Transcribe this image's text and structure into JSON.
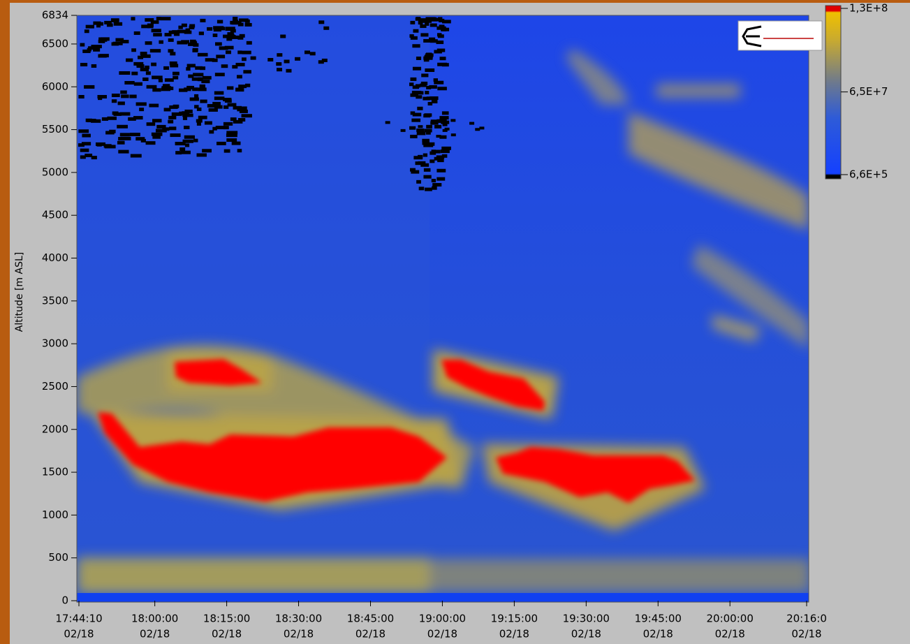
{
  "chart_data": {
    "type": "heatmap",
    "y_label": "Altitude [m ASL]",
    "ylim": [
      0,
      6834
    ],
    "yticks": [
      0,
      500,
      1000,
      1500,
      2000,
      2500,
      3000,
      3500,
      4000,
      4500,
      5000,
      5500,
      6000,
      6500,
      6834
    ],
    "xticks": [
      {
        "time": "17:44:10",
        "date": "02/18"
      },
      {
        "time": "18:00:00",
        "date": "02/18"
      },
      {
        "time": "18:15:00",
        "date": "02/18"
      },
      {
        "time": "18:30:00",
        "date": "02/18"
      },
      {
        "time": "18:45:00",
        "date": "02/18"
      },
      {
        "time": "19:00:00",
        "date": "02/18"
      },
      {
        "time": "19:15:00",
        "date": "02/18"
      },
      {
        "time": "19:30:00",
        "date": "02/18"
      },
      {
        "time": "19:45:00",
        "date": "02/18"
      },
      {
        "time": "20:00:00",
        "date": "02/18"
      },
      {
        "time": "20:16:0",
        "date": "02/18"
      }
    ],
    "colorbar": {
      "clim": [
        660000,
        130000000
      ],
      "ticks": [
        {
          "value": 130000000,
          "label": "1,3E+8"
        },
        {
          "value": 65000000,
          "label": "6,5E+7"
        },
        {
          "value": 660000,
          "label": "6,6E+5"
        }
      ]
    }
  }
}
